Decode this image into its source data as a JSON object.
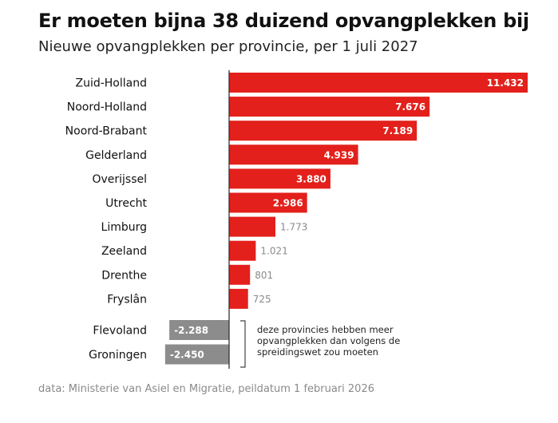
{
  "title": "Er moeten bijna 38 duizend opvangplekken bij",
  "subtitle": "Nieuwe opvangplekken per provincie, per 1 juli 2027",
  "source": "data: Ministerie van Asiel en Migratie, peildatum 1 februari 2026",
  "note": "deze provincies hebben meer opvangplekken dan volgens de spreidingswet zou moeten",
  "colors": {
    "positive": "#e3201b",
    "negative": "#8c8c8c",
    "label_light": "#ffffff",
    "label_outside": "#8a8a8a",
    "axis": "#333333"
  },
  "chart_data": {
    "type": "bar",
    "orientation": "horizontal",
    "categories": [
      "Zuid-Holland",
      "Noord-Holland",
      "Noord-Brabant",
      "Gelderland",
      "Overijssel",
      "Utrecht",
      "Limburg",
      "Zeeland",
      "Drenthe",
      "Fryslân",
      "Flevoland",
      "Groningen"
    ],
    "values": [
      11432,
      7676,
      7189,
      4939,
      3880,
      2986,
      1773,
      1021,
      801,
      725,
      -2288,
      -2450
    ],
    "value_labels": [
      "11.432",
      "7.676",
      "7.189",
      "4.939",
      "3.880",
      "2.986",
      "1.773",
      "1.021",
      "801",
      "725",
      "-2.288",
      "-2.450"
    ],
    "title": "Er moeten bijna 38 duizend opvangplekken bij",
    "subtitle": "Nieuwe opvangplekken per provincie, per 1 juli 2027",
    "xlabel": "",
    "ylabel": "",
    "xlim": [
      -2450,
      11432
    ],
    "grid": false,
    "legend": "none"
  }
}
